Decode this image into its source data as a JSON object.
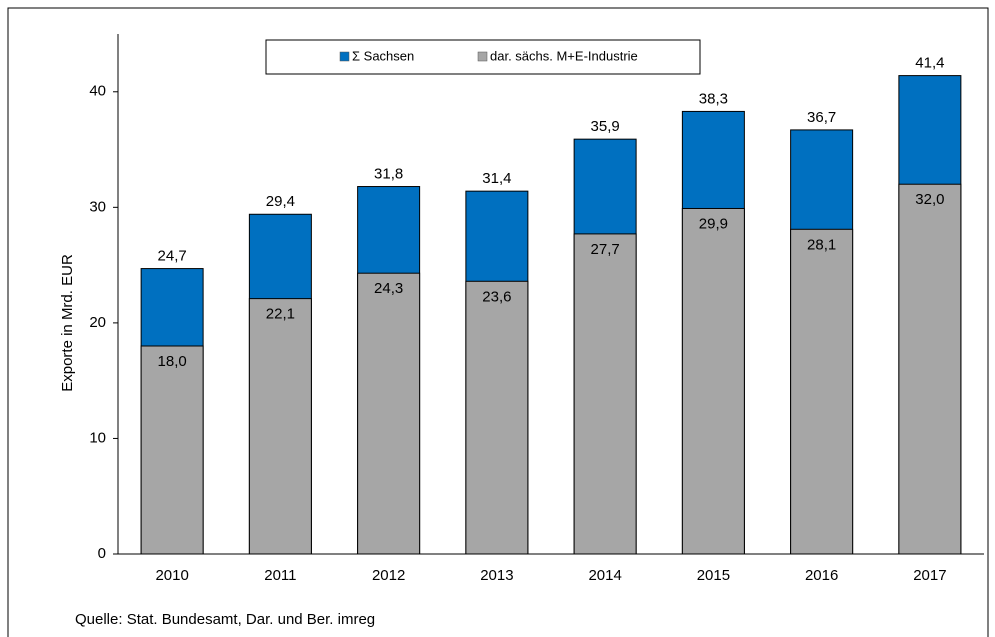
{
  "chart_data": {
    "type": "bar",
    "overlap": true,
    "y_label": "Exporte in Mrd. EUR",
    "source": "Quelle: Stat. Bundesamt, Dar. und Ber. imreg",
    "categories": [
      "2010",
      "2011",
      "2012",
      "2013",
      "2014",
      "2015",
      "2016",
      "2017"
    ],
    "series": [
      {
        "name": "Σ Sachsen",
        "color": "#0070c0",
        "values": [
          24.7,
          29.4,
          31.8,
          31.4,
          35.9,
          38.3,
          36.7,
          41.4
        ],
        "value_labels": [
          "24,7",
          "29,4",
          "31,8",
          "31,4",
          "35,9",
          "38,3",
          "36,7",
          "41,4"
        ]
      },
      {
        "name": "dar. sächs. M+E-Industrie",
        "color": "#a6a6a6",
        "values": [
          18.0,
          22.1,
          24.3,
          23.6,
          27.7,
          29.9,
          28.1,
          32.0
        ],
        "value_labels": [
          "18,0",
          "22,1",
          "24,3",
          "23,6",
          "27,7",
          "29,9",
          "28,1",
          "32,0"
        ]
      }
    ],
    "ylim": [
      0,
      45
    ],
    "yticks": [
      0,
      10,
      20,
      30,
      40
    ],
    "grid": false,
    "legend": "top"
  }
}
